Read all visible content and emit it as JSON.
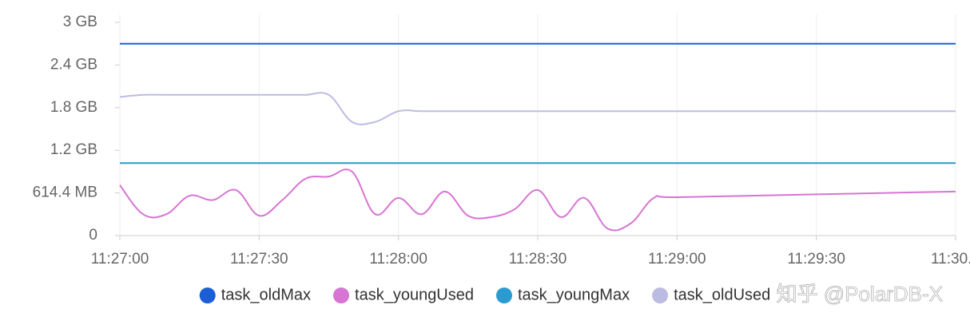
{
  "chart_data": {
    "type": "line",
    "x": [
      "11:27:00",
      "11:27:05",
      "11:27:10",
      "11:27:15",
      "11:27:20",
      "11:27:25",
      "11:27:30",
      "11:27:35",
      "11:27:40",
      "11:27:45",
      "11:27:50",
      "11:27:55",
      "11:28:00",
      "11:28:05",
      "11:28:10",
      "11:28:15",
      "11:28:20",
      "11:28:25",
      "11:28:30",
      "11:28:35",
      "11:28:40",
      "11:28:45",
      "11:28:50",
      "11:28:55",
      "11:29:00",
      "11:29:30",
      "11:30:00"
    ],
    "series": [
      {
        "name": "task_oldMax",
        "color": "#1a5fd6",
        "values": [
          2.7,
          2.7,
          2.7,
          2.7,
          2.7,
          2.7,
          2.7,
          2.7,
          2.7,
          2.7,
          2.7,
          2.7,
          2.7,
          2.7,
          2.7,
          2.7,
          2.7,
          2.7,
          2.7,
          2.7,
          2.7,
          2.7,
          2.7,
          2.7,
          2.7,
          2.7,
          2.7
        ]
      },
      {
        "name": "task_youngUsed",
        "color": "#d774d4",
        "values": [
          0.71,
          0.3,
          0.3,
          0.56,
          0.5,
          0.64,
          0.28,
          0.5,
          0.8,
          0.83,
          0.9,
          0.3,
          0.53,
          0.3,
          0.62,
          0.28,
          0.26,
          0.37,
          0.64,
          0.26,
          0.53,
          0.1,
          0.17,
          0.53,
          0.54,
          0.58,
          0.62
        ]
      },
      {
        "name": "task_youngMax",
        "color": "#2a9bd0",
        "values": [
          1.02,
          1.02,
          1.02,
          1.02,
          1.02,
          1.02,
          1.02,
          1.02,
          1.02,
          1.02,
          1.02,
          1.02,
          1.02,
          1.02,
          1.02,
          1.02,
          1.02,
          1.02,
          1.02,
          1.02,
          1.02,
          1.02,
          1.02,
          1.02,
          1.02,
          1.02,
          1.02
        ]
      },
      {
        "name": "task_oldUsed",
        "color": "#bcbce3",
        "values": [
          1.95,
          1.98,
          1.98,
          1.98,
          1.98,
          1.98,
          1.98,
          1.98,
          1.98,
          1.98,
          1.6,
          1.6,
          1.75,
          1.75,
          1.75,
          1.75,
          1.75,
          1.75,
          1.75,
          1.75,
          1.75,
          1.75,
          1.75,
          1.75,
          1.75,
          1.75,
          1.75
        ]
      }
    ],
    "xlim": [
      "11:27:00",
      "11:30:00"
    ],
    "xticks": [
      "11:27:00",
      "11:27:30",
      "11:28:00",
      "11:28:30",
      "11:29:00",
      "11:29:30",
      {
        "value": "11:30:00",
        "label": "11:30..."
      }
    ],
    "ylim": [
      0,
      3
    ],
    "yticks": [
      0,
      {
        "value": 0.6,
        "label": "614.4 MB"
      },
      {
        "value": 1.2,
        "label": "1.2 GB"
      },
      {
        "value": 1.8,
        "label": "1.8 GB"
      },
      {
        "value": 2.4,
        "label": "2.4 GB"
      },
      {
        "value": 3,
        "label": "3 GB"
      }
    ],
    "grid": "x",
    "legend": "bottom"
  },
  "watermark": "知乎 @PolarDB-X"
}
